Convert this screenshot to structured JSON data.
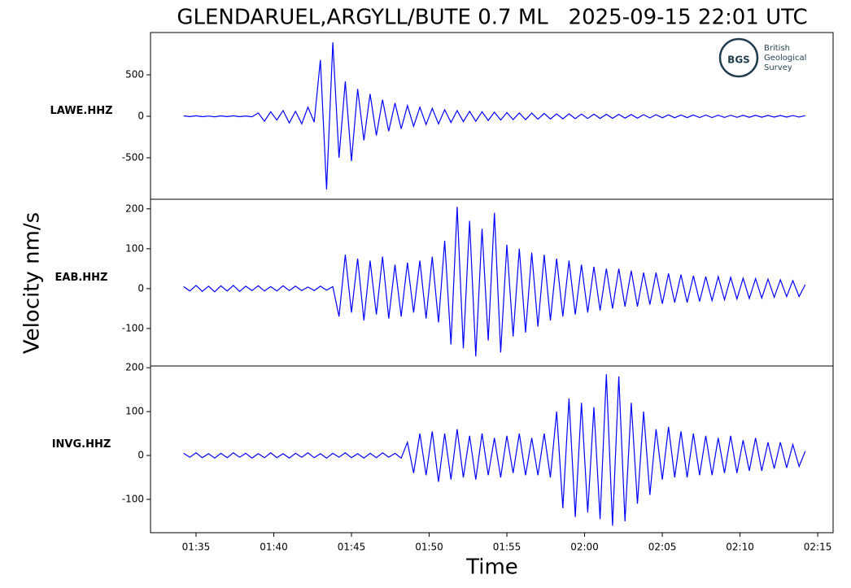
{
  "title": "GLENDARUEL,ARGYLL/BUTE 0.7 ML   2025-09-15 22:01 UTC",
  "ylabel": "Velocity nm/s",
  "xlabel": "Time",
  "logo": {
    "abbr": "BGS",
    "lines": [
      "British",
      "Geological",
      "Survey"
    ]
  },
  "chart_data": [
    {
      "type": "line",
      "x": [
        94.2,
        94.6,
        95,
        95.4,
        95.8,
        96.2,
        96.6,
        97,
        97.4,
        97.8,
        98.2,
        98.6,
        99,
        99.4,
        99.8,
        100.2,
        100.6,
        101,
        101.4,
        101.8,
        102.2,
        102.6,
        103,
        103.4,
        103.8,
        104.2,
        104.6,
        105,
        105.4,
        105.8,
        106.2,
        106.6,
        107,
        107.4,
        107.8,
        108.2,
        108.6,
        109,
        109.4,
        109.8,
        110.2,
        110.6,
        111,
        111.4,
        111.8,
        112.2,
        112.6,
        113,
        113.4,
        113.8,
        114.2,
        114.6,
        115,
        115.4,
        115.8,
        116.2,
        116.6,
        117,
        117.4,
        117.8,
        118.2,
        118.6,
        119,
        119.4,
        119.8,
        120.2,
        120.6,
        121,
        121.4,
        121.8,
        122.2,
        122.6,
        123,
        123.4,
        123.8,
        124.2,
        124.6,
        125,
        125.4,
        125.8,
        126.2,
        126.6,
        127,
        127.4,
        127.8,
        128.2,
        128.6,
        129,
        129.4,
        129.8,
        130.2,
        130.6,
        131,
        131.4,
        131.8,
        132.2,
        132.6,
        133,
        133.4,
        133.8,
        134.2
      ],
      "series": [
        {
          "name": "LAWE.HHZ",
          "color": "#0000ff",
          "values": [
            5,
            -4,
            6,
            -5,
            3,
            -6,
            5,
            -4,
            6,
            -5,
            4,
            -6,
            40,
            -60,
            55,
            -45,
            70,
            -80,
            60,
            -90,
            110,
            -70,
            680,
            -880,
            890,
            -500,
            420,
            -540,
            330,
            -290,
            270,
            -230,
            200,
            -180,
            160,
            -150,
            130,
            -120,
            110,
            -100,
            95,
            -90,
            80,
            -75,
            70,
            -65,
            60,
            -60,
            55,
            -50,
            50,
            -45,
            45,
            -40,
            40,
            -40,
            38,
            -35,
            35,
            -32,
            30,
            -30,
            30,
            -28,
            28,
            -26,
            26,
            -25,
            25,
            -24,
            24,
            -22,
            22,
            -22,
            20,
            -20,
            20,
            -18,
            18,
            -18,
            16,
            -16,
            16,
            -15,
            15,
            -15,
            14,
            -14,
            13,
            -13,
            12,
            -12,
            12,
            -11,
            11,
            -10,
            10,
            -10,
            9,
            -9,
            8
          ]
        }
      ],
      "xlim": [
        92.07,
        135.99
      ],
      "ylim": [
        -1000,
        1010
      ],
      "yticks": [
        -500,
        0,
        500
      ]
    },
    {
      "type": "line",
      "x": [
        94.2,
        94.6,
        95,
        95.4,
        95.8,
        96.2,
        96.6,
        97,
        97.4,
        97.8,
        98.2,
        98.6,
        99,
        99.4,
        99.8,
        100.2,
        100.6,
        101,
        101.4,
        101.8,
        102.2,
        102.6,
        103,
        103.4,
        103.8,
        104.2,
        104.6,
        105,
        105.4,
        105.8,
        106.2,
        106.6,
        107,
        107.4,
        107.8,
        108.2,
        108.6,
        109,
        109.4,
        109.8,
        110.2,
        110.6,
        111,
        111.4,
        111.8,
        112.2,
        112.6,
        113,
        113.4,
        113.8,
        114.2,
        114.6,
        115,
        115.4,
        115.8,
        116.2,
        116.6,
        117,
        117.4,
        117.8,
        118.2,
        118.6,
        119,
        119.4,
        119.8,
        120.2,
        120.6,
        121,
        121.4,
        121.8,
        122.2,
        122.6,
        123,
        123.4,
        123.8,
        124.2,
        124.6,
        125,
        125.4,
        125.8,
        126.2,
        126.6,
        127,
        127.4,
        127.8,
        128.2,
        128.6,
        129,
        129.4,
        129.8,
        130.2,
        130.6,
        131,
        131.4,
        131.8,
        132.2,
        132.6,
        133,
        133.4,
        133.8,
        134.2
      ],
      "series": [
        {
          "name": "EAB.HHZ",
          "color": "#0000ff",
          "values": [
            5,
            -6,
            8,
            -7,
            6,
            -8,
            7,
            -6,
            8,
            -7,
            6,
            -5,
            7,
            -6,
            5,
            -6,
            7,
            -5,
            6,
            -5,
            4,
            -5,
            6,
            -4,
            5,
            -70,
            85,
            -60,
            75,
            -80,
            70,
            -65,
            80,
            -75,
            60,
            -70,
            65,
            -60,
            70,
            -75,
            80,
            -85,
            120,
            -140,
            205,
            -150,
            170,
            -170,
            150,
            -130,
            190,
            -160,
            110,
            -120,
            100,
            -110,
            90,
            -95,
            85,
            -80,
            75,
            -70,
            70,
            -65,
            60,
            -60,
            55,
            -55,
            50,
            -50,
            50,
            -45,
            45,
            -45,
            40,
            -40,
            40,
            -38,
            38,
            -35,
            35,
            -35,
            32,
            -32,
            30,
            -30,
            30,
            -28,
            28,
            -26,
            26,
            -25,
            25,
            -24,
            24,
            -22,
            22,
            -20,
            20,
            -20,
            10
          ]
        }
      ],
      "xlim": [
        92.07,
        135.99
      ],
      "ylim": [
        -194,
        224
      ],
      "yticks": [
        -100,
        0,
        100,
        200
      ]
    },
    {
      "type": "line",
      "x": [
        94.2,
        94.6,
        95,
        95.4,
        95.8,
        96.2,
        96.6,
        97,
        97.4,
        97.8,
        98.2,
        98.6,
        99,
        99.4,
        99.8,
        100.2,
        100.6,
        101,
        101.4,
        101.8,
        102.2,
        102.6,
        103,
        103.4,
        103.8,
        104.2,
        104.6,
        105,
        105.4,
        105.8,
        106.2,
        106.6,
        107,
        107.4,
        107.8,
        108.2,
        108.6,
        109,
        109.4,
        109.8,
        110.2,
        110.6,
        111,
        111.4,
        111.8,
        112.2,
        112.6,
        113,
        113.4,
        113.8,
        114.2,
        114.6,
        115,
        115.4,
        115.8,
        116.2,
        116.6,
        117,
        117.4,
        117.8,
        118.2,
        118.6,
        119,
        119.4,
        119.8,
        120.2,
        120.6,
        121,
        121.4,
        121.8,
        122.2,
        122.6,
        123,
        123.4,
        123.8,
        124.2,
        124.6,
        125,
        125.4,
        125.8,
        126.2,
        126.6,
        127,
        127.4,
        127.8,
        128.2,
        128.6,
        129,
        129.4,
        129.8,
        130.2,
        130.6,
        131,
        131.4,
        131.8,
        132.2,
        132.6,
        133,
        133.4,
        133.8,
        134.2
      ],
      "series": [
        {
          "name": "INVG.HHZ",
          "color": "#0000ff",
          "values": [
            5,
            -4,
            6,
            -5,
            4,
            -6,
            5,
            -5,
            6,
            -4,
            5,
            -6,
            4,
            -5,
            6,
            -5,
            4,
            -6,
            5,
            -4,
            6,
            -5,
            4,
            -6,
            5,
            -4,
            6,
            -5,
            4,
            -6,
            5,
            -5,
            6,
            -4,
            5,
            -6,
            30,
            -40,
            50,
            -45,
            55,
            -60,
            50,
            -55,
            60,
            -50,
            45,
            -55,
            50,
            -45,
            40,
            -50,
            45,
            -40,
            50,
            -45,
            40,
            -45,
            50,
            -50,
            100,
            -120,
            130,
            -140,
            120,
            -130,
            110,
            -145,
            185,
            -160,
            180,
            -150,
            120,
            -110,
            100,
            -90,
            60,
            -55,
            65,
            -50,
            55,
            -50,
            50,
            -45,
            45,
            -45,
            40,
            -40,
            45,
            -40,
            35,
            -35,
            40,
            -35,
            30,
            -30,
            30,
            -28,
            25,
            -25,
            10
          ]
        }
      ],
      "xlim": [
        92.07,
        135.99
      ],
      "ylim": [
        -176,
        204
      ],
      "yticks": [
        -100,
        0,
        100,
        200
      ],
      "xticks": [
        {
          "value": 95,
          "label": "01:35"
        },
        {
          "value": 100,
          "label": "01:40"
        },
        {
          "value": 105,
          "label": "01:45"
        },
        {
          "value": 110,
          "label": "01:50"
        },
        {
          "value": 115,
          "label": "01:55"
        },
        {
          "value": 120,
          "label": "02:00"
        },
        {
          "value": 125,
          "label": "02:05"
        },
        {
          "value": 130,
          "label": "02:10"
        },
        {
          "value": 135,
          "label": "02:15"
        }
      ]
    }
  ]
}
